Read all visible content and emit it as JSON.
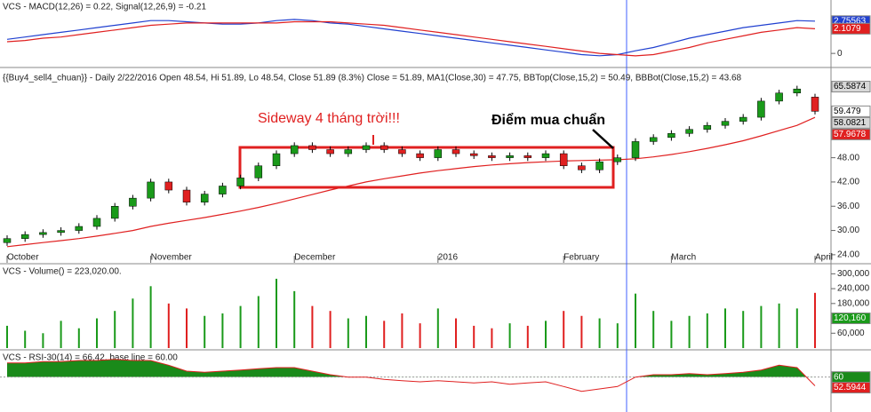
{
  "chart_data": [
    {
      "type": "macd",
      "title": "VCS - MACD(12,26) = 0.22, Signal(12,26,9) = -0.21",
      "series": [
        {
          "color": "#2040d0",
          "values": [
            1.2,
            1.4,
            1.6,
            1.8,
            2.0,
            2.2,
            2.4,
            2.6,
            2.8,
            2.8,
            2.7,
            2.6,
            2.5,
            2.5,
            2.6,
            2.8,
            2.9,
            2.8,
            2.6,
            2.5,
            2.3,
            2.1,
            1.9,
            1.7,
            1.5,
            1.3,
            1.1,
            0.9,
            0.7,
            0.5,
            0.3,
            0.1,
            -0.1,
            -0.2,
            -0.1,
            0.22,
            0.5,
            0.9,
            1.3,
            1.6,
            1.9,
            2.2,
            2.4,
            2.6,
            2.8,
            2.75563
          ]
        },
        {
          "color": "#e02020",
          "values": [
            1.0,
            1.1,
            1.3,
            1.4,
            1.6,
            1.8,
            2.0,
            2.2,
            2.4,
            2.5,
            2.6,
            2.6,
            2.6,
            2.6,
            2.6,
            2.6,
            2.7,
            2.7,
            2.7,
            2.6,
            2.5,
            2.4,
            2.2,
            2.0,
            1.8,
            1.6,
            1.4,
            1.2,
            1.0,
            0.8,
            0.6,
            0.4,
            0.2,
            0.0,
            -0.1,
            -0.21,
            -0.1,
            0.2,
            0.5,
            0.9,
            1.2,
            1.5,
            1.8,
            2.0,
            2.2,
            2.1079
          ]
        }
      ],
      "ylim": [
        -0.9,
        3.5
      ],
      "yticks": [
        0
      ]
    },
    {
      "type": "candlestick",
      "title": "{{Buy4_sell4_chuan}} - Daily 2/22/2016 Open 48.54, Hi 51.89, Lo 48.54, Close 51.89 (8.3%) Close = 51.89, MA1(Close,30) = 47.75, BBTop(Close,15,2) = 50.49, BBBot(Close,15,2) = 43.68",
      "open": [
        27,
        28,
        29,
        29.5,
        30,
        31,
        33,
        36,
        38,
        42,
        40,
        37,
        39,
        41,
        43,
        46,
        49,
        51,
        50,
        49,
        50,
        51,
        50,
        49,
        48,
        50,
        49,
        48.5,
        48,
        48.5,
        48,
        49,
        46,
        45,
        47,
        48,
        52,
        53,
        54,
        55,
        56,
        57,
        58,
        62,
        64,
        63
      ],
      "high": [
        28.8,
        29.8,
        30.3,
        30.8,
        31.8,
        33.8,
        36.8,
        38.8,
        42.8,
        42.8,
        40.8,
        39.8,
        41.8,
        43.8,
        46.8,
        49.8,
        51.8,
        51.8,
        50.8,
        50.8,
        51.8,
        51.8,
        50.8,
        49.8,
        50.8,
        50.8,
        49.8,
        49.3,
        49.3,
        49.3,
        49.8,
        49.8,
        46.8,
        47.8,
        48.8,
        52.8,
        53.8,
        54.8,
        55.8,
        56.8,
        57.8,
        58.8,
        62.8,
        64.8,
        65.8,
        63.8
      ],
      "low": [
        26.2,
        27.2,
        28.2,
        28.7,
        29.2,
        30.2,
        32.2,
        35.2,
        37.2,
        39.2,
        36.2,
        36.2,
        38.2,
        40.2,
        42.2,
        45.2,
        48.2,
        49.2,
        48.2,
        48.2,
        49.2,
        49.2,
        48.2,
        47.2,
        47.2,
        48.2,
        47.7,
        47.2,
        47.2,
        47.2,
        47.2,
        45.2,
        44.2,
        44.2,
        46.2,
        47.2,
        51.2,
        52.2,
        53.2,
        54.2,
        55.2,
        56.2,
        57.2,
        61.2,
        63.2,
        58.7
      ],
      "close": [
        28,
        29,
        29.5,
        30,
        31,
        33,
        36,
        38,
        42,
        40,
        37,
        39,
        41,
        43,
        46,
        49,
        51,
        50,
        49,
        50,
        51,
        50,
        49,
        48,
        50,
        49,
        48.5,
        48,
        48.5,
        48,
        49,
        46,
        45,
        47,
        48,
        52,
        53,
        54,
        55,
        56,
        57,
        58,
        62,
        64,
        65,
        59.479
      ],
      "up_color": "#1a9a1a",
      "down_color": "#e02020",
      "ma": {
        "color": "#e02020",
        "values": [
          26,
          26.5,
          27,
          27.5,
          28,
          28.6,
          29.3,
          30,
          31,
          31.8,
          32.5,
          33.2,
          34,
          34.8,
          35.7,
          36.7,
          37.8,
          38.9,
          40,
          41,
          42,
          42.8,
          43.5,
          44.2,
          44.8,
          45.3,
          45.8,
          46.2,
          46.5,
          46.8,
          47,
          47.2,
          47.3,
          47.4,
          47.5,
          47.75,
          48.2,
          48.8,
          49.5,
          50.3,
          51.2,
          52.2,
          53.4,
          54.7,
          56,
          57.9678
        ]
      },
      "last_labels": [
        {
          "value": 65.5874,
          "color": "#d8d8d8"
        },
        {
          "value": 59.479,
          "color": "#ffffff"
        },
        {
          "value": 58.0821,
          "color": "#d8d8d8"
        }
      ],
      "ylim": [
        22,
        69
      ],
      "yticks": [
        {
          "value": 24,
          "label": "24.00"
        },
        {
          "value": 30,
          "label": "30.00"
        },
        {
          "value": 36,
          "label": "36.00"
        },
        {
          "value": 42,
          "label": "42.00"
        },
        {
          "value": 48,
          "label": "48.00"
        }
      ],
      "x_labels": [
        {
          "value": 0,
          "label": "October"
        },
        {
          "value": 8,
          "label": "November"
        },
        {
          "value": 16,
          "label": "December"
        },
        {
          "value": 24,
          "label": "2016"
        },
        {
          "value": 31,
          "label": "February"
        },
        {
          "value": 37,
          "label": "March"
        },
        {
          "value": 45,
          "label": "April"
        }
      ],
      "annotations": [
        "Sideway 4 tháng trời!!!",
        "Điểm mua chuẩn"
      ]
    },
    {
      "type": "bar",
      "title": "VCS - Volume() = 223,020.00.",
      "values": [
        90000,
        70000,
        60000,
        110000,
        80000,
        120000,
        150000,
        200000,
        250000,
        180000,
        160000,
        130000,
        140000,
        170000,
        210000,
        280000,
        230000,
        170000,
        150000,
        120000,
        130000,
        110000,
        140000,
        100000,
        160000,
        120000,
        90000,
        80000,
        100000,
        90000,
        110000,
        150000,
        130000,
        120000,
        100000,
        220000,
        150000,
        110000,
        130000,
        140000,
        160000,
        150000,
        170000,
        180000,
        160000,
        223020
      ],
      "ylim": [
        0,
        330000
      ],
      "yticks": [
        {
          "value": 60000,
          "label": "60,000"
        },
        {
          "value": 180000,
          "label": "180,000"
        },
        {
          "value": 240000,
          "label": "240,000"
        },
        {
          "value": 300000,
          "label": "300,000"
        }
      ],
      "box": {
        "value": 120160,
        "label": "120,160"
      }
    },
    {
      "type": "line",
      "title": "VCS - RSI-30(14) = 66.42, base line = 60.00",
      "values": [
        72,
        72,
        73,
        73,
        74,
        74,
        75,
        74,
        74,
        70,
        65,
        64,
        65,
        66,
        67,
        68,
        68,
        65,
        62,
        60,
        60,
        58,
        57,
        56,
        57,
        56,
        55,
        56,
        54,
        55,
        56,
        52,
        48,
        50,
        52,
        60,
        62,
        62,
        63,
        62,
        63,
        64,
        66,
        70,
        68,
        52.5944
      ],
      "color": "#e02020",
      "fill_color": "#1a8a1a",
      "base_line": 60,
      "ylim": [
        35,
        80
      ]
    }
  ]
}
